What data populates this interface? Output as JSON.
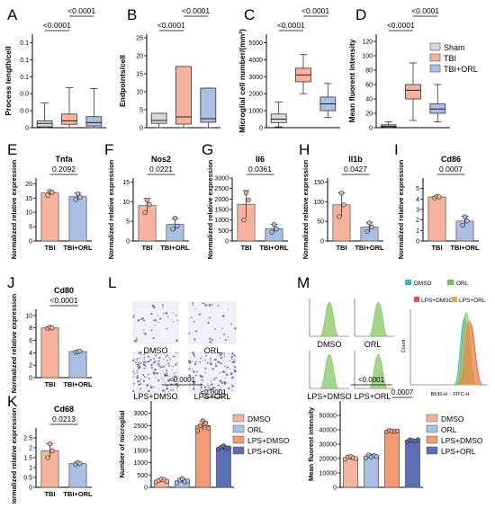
{
  "colors": {
    "sham": "#d9d9d9",
    "tbi": "#f6b29b",
    "orl": "#a9bfe3",
    "dmso_bar": "#f6b29b",
    "orl_bar": "#a9bfe3",
    "lps_dmso_bar": "#f39a73",
    "lps_orl_bar": "#5a6fb6",
    "axis": "#000000",
    "dmso_curve": "#2bb8c8",
    "orl_curve": "#72c24a",
    "lps_dmso_curve": "#e84c4c",
    "lps_orl_curve": "#f3a54a",
    "hist_fill": "#9bd27c",
    "micro_bg": "#f2f0f8",
    "micro_cell": "#5d4c9a"
  },
  "panels": {
    "A": "A",
    "B": "B",
    "C": "C",
    "D": "D",
    "E": "E",
    "F": "F",
    "G": "G",
    "H": "H",
    "I": "I",
    "J": "J",
    "K": "K",
    "L": "L",
    "M": "M"
  },
  "legend_top": [
    "Sham",
    "TBI",
    "TBI+ORL"
  ],
  "legend_I": [
    "DMSO",
    "ORL"
  ],
  "legend_M": [
    "LPS+DMSO",
    "LPS+ORL"
  ],
  "micro_labels": [
    "DMSO",
    "ORL",
    "LPS+DMSO",
    "LPS+ORL"
  ],
  "flow_labels": [
    "DMSO",
    "ORL",
    "LPS+DMSO",
    "LPS+ORL"
  ],
  "flow_axis": {
    "y": "Count",
    "x": "B530-H :: FITC-H"
  },
  "bar_legend": [
    "DMSO",
    "ORL",
    "LPS+DMSO",
    "LPS+ORL"
  ],
  "chart_data": [
    {
      "id": "A",
      "type": "box",
      "ylabel": "Process length/cell",
      "groups": [
        "Sham",
        "TBI",
        "TBI+ORL"
      ],
      "ylim": [
        0,
        0.11
      ],
      "boxes": [
        {
          "min": 0.0,
          "q1": 0.001,
          "med": 0.005,
          "q3": 0.008,
          "max": 0.029
        },
        {
          "min": 0.0,
          "q1": 0.004,
          "med": 0.008,
          "q3": 0.016,
          "max": 0.047
        },
        {
          "min": 0.0,
          "q1": 0.002,
          "med": 0.006,
          "q3": 0.013,
          "max": 0.046
        }
      ],
      "sig": [
        {
          "label": "<0.0001",
          "from": 0,
          "to": 1,
          "level": 1
        },
        {
          "label": "<0.0001",
          "from": 1,
          "to": 2,
          "level": 2
        }
      ]
    },
    {
      "id": "B",
      "type": "box",
      "ylabel": "Endpoints/cell",
      "groups": [
        "Sham",
        "TBI",
        "TBI+ORL"
      ],
      "ylim": [
        0,
        26
      ],
      "boxes": [
        {
          "min": 0,
          "q1": 1.2,
          "med": 2.0,
          "q3": 4.0,
          "max": 4.0
        },
        {
          "min": 0,
          "q1": 1.0,
          "med": 3.0,
          "q3": 17.0,
          "max": 17.0
        },
        {
          "min": 0,
          "q1": 1.5,
          "med": 2.5,
          "q3": 11.0,
          "max": 11.0
        }
      ],
      "sig": [
        {
          "label": "<0.0001",
          "from": 0,
          "to": 1,
          "level": 1
        },
        {
          "label": "<0.0001",
          "from": 1,
          "to": 2,
          "level": 2
        }
      ]
    },
    {
      "id": "C",
      "type": "box",
      "ylabel": "Microglial cell number/(mm²)",
      "groups": [
        "Sham",
        "TBI",
        "TBI+ORL"
      ],
      "ylim": [
        0,
        5500
      ],
      "boxes": [
        {
          "min": 50,
          "q1": 300,
          "med": 500,
          "q3": 800,
          "max": 1500
        },
        {
          "min": 2000,
          "q1": 2700,
          "med": 3100,
          "q3": 3500,
          "max": 4300
        },
        {
          "min": 600,
          "q1": 1000,
          "med": 1400,
          "q3": 1800,
          "max": 2600
        }
      ],
      "sig": [
        {
          "label": "<0.0001",
          "from": 0,
          "to": 1,
          "level": 1
        },
        {
          "label": "<0.0001",
          "from": 1,
          "to": 2,
          "level": 2
        }
      ]
    },
    {
      "id": "D",
      "type": "box",
      "ylabel": "Mean fluorent intensity",
      "groups": [
        "Sham",
        "TBI",
        "TBI+ORL"
      ],
      "ylim": [
        0,
        130
      ],
      "boxes": [
        {
          "min": 0,
          "q1": 1,
          "med": 2,
          "q3": 4,
          "max": 8
        },
        {
          "min": 10,
          "q1": 40,
          "med": 52,
          "q3": 60,
          "max": 90
        },
        {
          "min": 8,
          "q1": 20,
          "med": 26,
          "q3": 33,
          "max": 60
        }
      ],
      "sig": [
        {
          "label": "<0.0001",
          "from": 0,
          "to": 1,
          "level": 1
        },
        {
          "label": "<0.0001",
          "from": 1,
          "to": 2,
          "level": 2
        }
      ]
    },
    {
      "id": "E",
      "type": "bar",
      "title": "Tnfa",
      "ylabel": "Normalized relative expression",
      "categories": [
        "TBI",
        "TBI+ORL"
      ],
      "values": [
        16.8,
        15.5
      ],
      "err": [
        0.8,
        1.2
      ],
      "points": [
        [
          16.0,
          17.3,
          17.0
        ],
        [
          14.5,
          16.5,
          15.3
        ]
      ],
      "ylim": [
        0,
        22
      ],
      "ticks": [
        0,
        5,
        10,
        15,
        20
      ],
      "sig": "0.2092"
    },
    {
      "id": "F",
      "type": "bar",
      "title": "Nos2",
      "ylabel": "Normalized relative expression",
      "categories": [
        "TBI",
        "TBI+ORL"
      ],
      "values": [
        9.0,
        4.2
      ],
      "err": [
        1.8,
        1.5
      ],
      "points": [
        [
          7.2,
          10.4,
          9.3
        ],
        [
          3.0,
          5.8,
          3.8
        ]
      ],
      "ylim": [
        0,
        16
      ],
      "ticks": [
        0,
        5,
        10,
        15
      ],
      "sig": "0.0221"
    },
    {
      "id": "G",
      "type": "bar",
      "title": "Il6",
      "ylabel": "Normalized relative expression",
      "categories": [
        "TBI",
        "TBI+ORL"
      ],
      "values": [
        1750,
        590
      ],
      "err": [
        650,
        200
      ],
      "points": [
        [
          1000,
          2300,
          1950
        ],
        [
          420,
          780,
          570
        ]
      ],
      "ylim": [
        0,
        3000
      ],
      "ticks": [
        0,
        500,
        1000,
        1500,
        2000,
        2500,
        3000
      ],
      "sig": "0.0361"
    },
    {
      "id": "H",
      "type": "bar",
      "title": "Il1b",
      "ylabel": "Normalized relative expression",
      "categories": [
        "TBI",
        "TBI+ORL"
      ],
      "values": [
        92,
        35
      ],
      "err": [
        30,
        12
      ],
      "points": [
        [
          62,
          122,
          92
        ],
        [
          24,
          46,
          35
        ]
      ],
      "ylim": [
        0,
        160
      ],
      "ticks": [
        0,
        50,
        100,
        150
      ],
      "sig": "0.0427"
    },
    {
      "id": "I",
      "type": "bar",
      "title": "Cd86",
      "ylabel": "Normalized relative expression",
      "categories": [
        "TBI",
        "TBI+ORL"
      ],
      "values": [
        4.2,
        1.9
      ],
      "err": [
        0.1,
        0.45
      ],
      "points": [
        [
          4.1,
          4.25,
          4.2
        ],
        [
          1.5,
          2.3,
          1.9
        ]
      ],
      "ylim": [
        0,
        6
      ],
      "ticks": [
        0,
        1,
        2,
        3,
        4,
        5
      ],
      "sig": "0.0007"
    },
    {
      "id": "J",
      "type": "bar",
      "title": "Cd80",
      "ylabel": "Normalized relative expression",
      "categories": [
        "TBI",
        "TBI+ORL"
      ],
      "values": [
        8.0,
        4.2
      ],
      "err": [
        0.2,
        0.1
      ],
      "points": [
        [
          7.9,
          8.1,
          8.0
        ],
        [
          4.1,
          4.2,
          4.25
        ]
      ],
      "ylim": [
        0,
        11
      ],
      "ticks": [
        0,
        2,
        4,
        6,
        8,
        10
      ],
      "sig": "<0.0001"
    },
    {
      "id": "K",
      "type": "bar",
      "title": "Cd68",
      "ylabel": "Normalized relative expression",
      "categories": [
        "TBI",
        "TBI+ORL"
      ],
      "values": [
        1.85,
        1.2
      ],
      "err": [
        0.35,
        0.08
      ],
      "points": [
        [
          1.5,
          2.2,
          1.85
        ],
        [
          1.15,
          1.25,
          1.2
        ]
      ],
      "ylim": [
        0,
        3.0
      ],
      "ticks": [
        0,
        0.5,
        1.0,
        1.5,
        2.0,
        2.5
      ],
      "sig": "0.0213"
    },
    {
      "id": "L2",
      "type": "bar",
      "ylabel": "Number of microglial",
      "categories": [
        "DMSO",
        "ORL",
        "LPS+DMSO",
        "LPS+ORL"
      ],
      "values": [
        280,
        260,
        2500,
        1600
      ],
      "err": [
        60,
        80,
        180,
        80
      ],
      "points": [
        [
          220,
          280,
          330,
          300,
          250
        ],
        [
          180,
          300,
          350,
          220,
          260
        ],
        [
          2300,
          2500,
          2700,
          2600,
          2400
        ],
        [
          1550,
          1620,
          1680,
          1580,
          1600
        ]
      ],
      "ylim": [
        0,
        3500
      ],
      "ticks": [
        0,
        500,
        1000,
        1500,
        2000,
        2500,
        3000
      ],
      "sig": [
        {
          "label": "<0.0001",
          "from": 0,
          "to": 2,
          "level": 2
        },
        {
          "label": "<0.0001",
          "from": 2,
          "to": 3,
          "level": 1
        }
      ]
    },
    {
      "id": "M2",
      "type": "bar",
      "ylabel": "Mean fluorent intensity",
      "categories": [
        "DMSO",
        "ORL",
        "LPS+DMSO",
        "LPS+ORL"
      ],
      "values": [
        20500,
        21500,
        39000,
        32500
      ],
      "err": [
        1200,
        1500,
        800,
        900
      ],
      "points": [
        [
          19500,
          21000,
          21500,
          20500,
          20000
        ],
        [
          20500,
          22500,
          21000,
          22000,
          21500
        ],
        [
          38500,
          39500,
          39000,
          38800,
          39200
        ],
        [
          31800,
          33000,
          32500,
          32200,
          33100
        ]
      ],
      "ylim": [
        0,
        60000
      ],
      "ticks": [
        0,
        10000,
        20000,
        30000,
        40000,
        50000
      ],
      "sig": [
        {
          "label": "<0.0001",
          "from": 0,
          "to": 2,
          "level": 2
        },
        {
          "label": "0.0007",
          "from": 2,
          "to": 3,
          "level": 1
        }
      ]
    }
  ]
}
